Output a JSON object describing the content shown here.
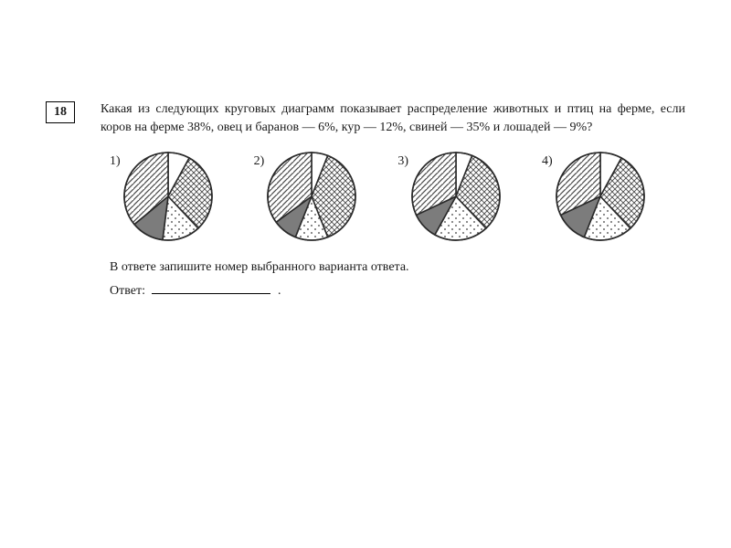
{
  "question": {
    "number": "18",
    "text": "Какая из следующих круговых диаграмм показывает распределение животных и птиц на ферме, если коров на ферме 38%, овец и баранов — 6%, кур — 12%, свиней — 35% и лошадей — 9%?",
    "footer_instruction": "В ответе запишите номер выбранного варианта ответа.",
    "answer_label": "Ответ:",
    "answer_suffix": "."
  },
  "pie_style": {
    "radius": 48,
    "stroke": "#2a2a2a",
    "stroke_width": 1.6,
    "start_angle_deg": -90
  },
  "patterns": {
    "crosshatch": {
      "size": 6,
      "stroke": "#4a4a4a",
      "width": 0.9
    },
    "diagonal": {
      "size": 6,
      "stroke": "#4a4a4a",
      "width": 1.2
    },
    "dots": {
      "size": 8,
      "r": 0.9,
      "fill": "#3a3a3a"
    },
    "solid_gray": "#7c7c7c",
    "white": "#ffffff"
  },
  "options": [
    {
      "label": "1)",
      "slices": [
        {
          "pct": 8,
          "fill": "white"
        },
        {
          "pct": 30,
          "fill": "crosshatch"
        },
        {
          "pct": 14,
          "fill": "dots"
        },
        {
          "pct": 12,
          "fill": "solid_gray"
        },
        {
          "pct": 36,
          "fill": "diagonal"
        }
      ]
    },
    {
      "label": "2)",
      "slices": [
        {
          "pct": 6,
          "fill": "white"
        },
        {
          "pct": 38,
          "fill": "crosshatch"
        },
        {
          "pct": 12,
          "fill": "dots"
        },
        {
          "pct": 9,
          "fill": "solid_gray"
        },
        {
          "pct": 35,
          "fill": "diagonal"
        }
      ]
    },
    {
      "label": "3)",
      "slices": [
        {
          "pct": 6,
          "fill": "white"
        },
        {
          "pct": 32,
          "fill": "crosshatch"
        },
        {
          "pct": 20,
          "fill": "dots"
        },
        {
          "pct": 10,
          "fill": "solid_gray"
        },
        {
          "pct": 32,
          "fill": "diagonal"
        }
      ]
    },
    {
      "label": "4)",
      "slices": [
        {
          "pct": 8,
          "fill": "white"
        },
        {
          "pct": 30,
          "fill": "crosshatch"
        },
        {
          "pct": 18,
          "fill": "dots"
        },
        {
          "pct": 12,
          "fill": "solid_gray"
        },
        {
          "pct": 32,
          "fill": "diagonal"
        }
      ]
    }
  ]
}
